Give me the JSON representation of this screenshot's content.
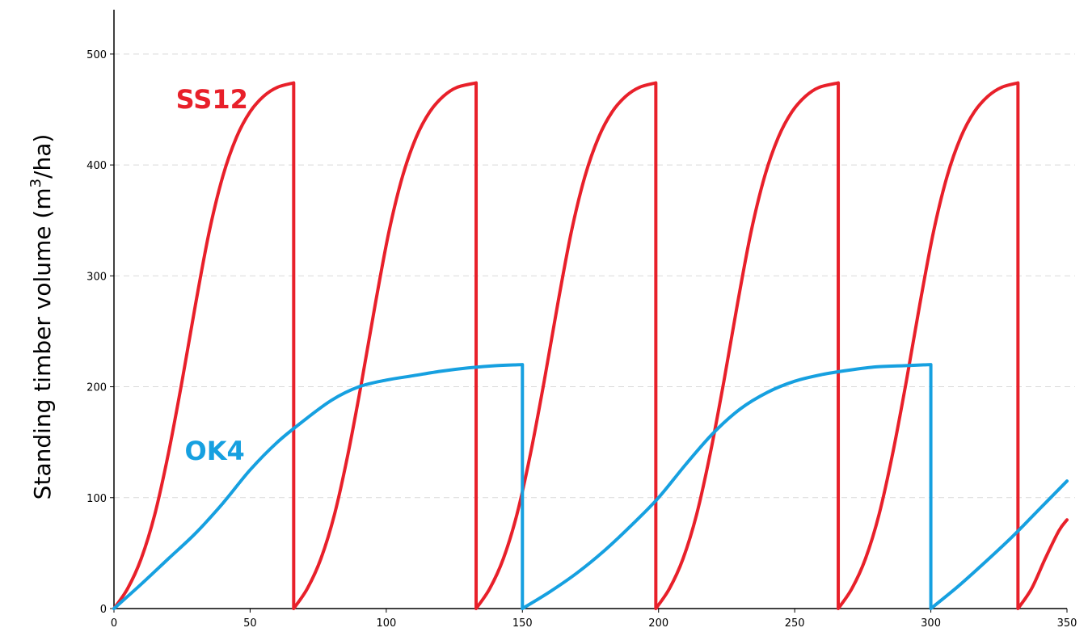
{
  "chart_data": {
    "type": "line",
    "title": "",
    "xlabel": "",
    "ylabel": {
      "prefix": "Standing timber volume (m",
      "sup": "3",
      "suffix": "/ha)"
    },
    "xlim": [
      0,
      350
    ],
    "ylim": [
      0,
      540
    ],
    "x_ticks": [
      0,
      50,
      100,
      150,
      200,
      250,
      300,
      350
    ],
    "y_ticks": [
      0,
      100,
      200,
      300,
      400,
      500
    ],
    "grid": {
      "y": true,
      "x": false,
      "style": "dashed"
    },
    "legend": "none",
    "series": [
      {
        "name": "SS12",
        "color": "#e8202a",
        "x": [
          0,
          5,
          10,
          15,
          20,
          25,
          30,
          35,
          40,
          45,
          50,
          55,
          60,
          66,
          66,
          71,
          76,
          81,
          86,
          91,
          96,
          101,
          106,
          111,
          116,
          121,
          126,
          133,
          133,
          138,
          143,
          148,
          153,
          158,
          163,
          168,
          173,
          178,
          183,
          188,
          193,
          199,
          199,
          204,
          209,
          214,
          219,
          224,
          229,
          234,
          239,
          244,
          249,
          254,
          259,
          266,
          266,
          271,
          276,
          281,
          286,
          291,
          296,
          301,
          306,
          311,
          316,
          321,
          326,
          332,
          332,
          337,
          342,
          347,
          350
        ],
        "y": [
          0,
          18,
          45,
          85,
          140,
          205,
          275,
          340,
          390,
          425,
          448,
          462,
          470,
          474,
          0,
          18,
          45,
          85,
          140,
          205,
          275,
          340,
          390,
          425,
          448,
          462,
          470,
          474,
          0,
          18,
          45,
          85,
          140,
          205,
          275,
          340,
          390,
          425,
          448,
          462,
          470,
          474,
          0,
          18,
          45,
          85,
          140,
          205,
          275,
          340,
          390,
          425,
          448,
          462,
          470,
          474,
          0,
          18,
          45,
          85,
          140,
          205,
          275,
          340,
          390,
          425,
          448,
          462,
          470,
          474,
          0,
          18,
          45,
          70,
          80
        ]
      },
      {
        "name": "OK4",
        "color": "#16a0e0",
        "x": [
          0,
          10,
          20,
          30,
          40,
          50,
          60,
          70,
          80,
          90,
          100,
          110,
          120,
          130,
          140,
          150,
          150,
          160,
          170,
          180,
          190,
          200,
          210,
          220,
          230,
          240,
          250,
          260,
          270,
          280,
          290,
          300,
          300,
          310,
          320,
          330,
          340,
          350
        ],
        "y": [
          0,
          22,
          45,
          68,
          95,
          125,
          150,
          170,
          188,
          200,
          206,
          210,
          214,
          217,
          219,
          220,
          0,
          15,
          32,
          52,
          75,
          100,
          130,
          158,
          180,
          195,
          205,
          211,
          215,
          218,
          219,
          220,
          0,
          20,
          42,
          65,
          90,
          115
        ]
      }
    ],
    "annotations": [
      {
        "text": "SS12",
        "color": "#e8202a",
        "x": 36,
        "y": 460
      },
      {
        "text": "OK4",
        "color": "#16a0e0",
        "x": 37,
        "y": 143
      }
    ]
  }
}
